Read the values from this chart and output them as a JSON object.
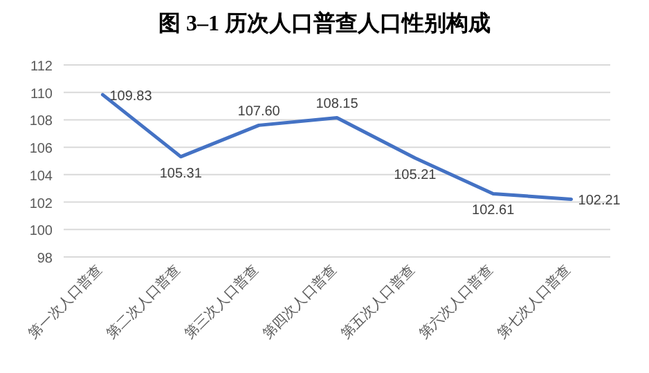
{
  "chart_data": {
    "type": "line",
    "title": "图 3–1 历次人口普查人口性别构成",
    "categories": [
      "第一次人口普查",
      "第二次人口普查",
      "第三次人口普查",
      "第四次人口普查",
      "第五次人口普查",
      "第六次人口普查",
      "第七次人口普查"
    ],
    "series": [
      {
        "color": "#4472c4",
        "values": [
          109.83,
          105.31,
          107.6,
          108.15,
          105.21,
          102.61,
          102.21
        ],
        "value_labels": [
          "109.83",
          "105.31",
          "107.60",
          "108.15",
          "105.21",
          "102.61",
          "102.21"
        ]
      }
    ],
    "ylim": [
      98,
      112
    ],
    "yticks": [
      98,
      100,
      102,
      104,
      106,
      108,
      110,
      112
    ],
    "grid": "y"
  }
}
